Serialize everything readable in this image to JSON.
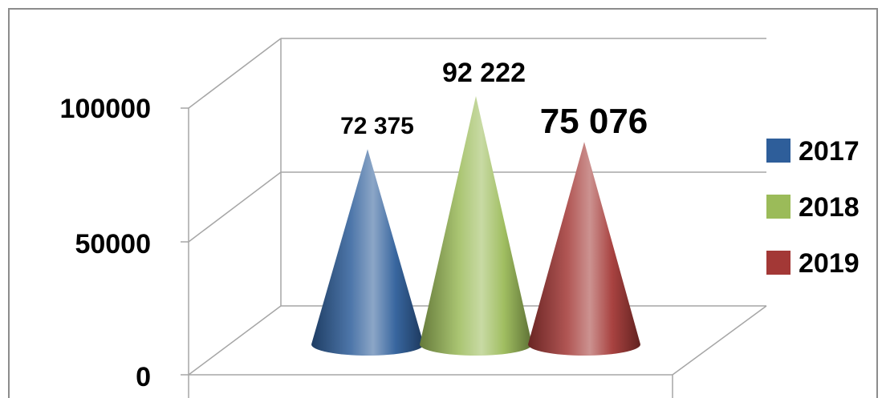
{
  "chart_data": {
    "type": "bar",
    "shape": "cone-3d",
    "categories": [
      "2017",
      "2018",
      "2019"
    ],
    "series": [
      {
        "name": "2017",
        "value": 72375,
        "label": "72 375",
        "color": "#2e5e9a"
      },
      {
        "name": "2018",
        "value": 92222,
        "label": "92 222",
        "color": "#9bbb59"
      },
      {
        "name": "2019",
        "value": 75076,
        "label": "75 076",
        "color": "#a33836"
      }
    ],
    "y_ticks": [
      "0",
      "50000",
      "100000"
    ],
    "ylim": [
      0,
      100000
    ],
    "grid": true,
    "legend_position": "right"
  }
}
